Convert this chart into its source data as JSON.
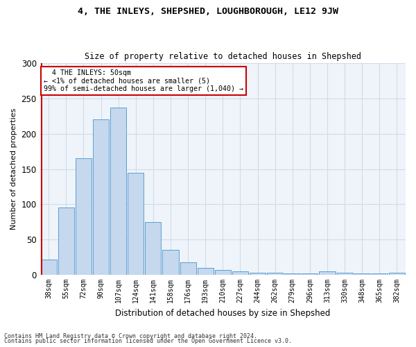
{
  "title": "4, THE INLEYS, SHEPSHED, LOUGHBOROUGH, LE12 9JW",
  "subtitle": "Size of property relative to detached houses in Shepshed",
  "xlabel": "Distribution of detached houses by size in Shepshed",
  "ylabel": "Number of detached properties",
  "bar_color": "#c5d8ed",
  "bar_edge_color": "#5a9fd4",
  "categories": [
    "38sqm",
    "55sqm",
    "72sqm",
    "90sqm",
    "107sqm",
    "124sqm",
    "141sqm",
    "158sqm",
    "176sqm",
    "193sqm",
    "210sqm",
    "227sqm",
    "244sqm",
    "262sqm",
    "279sqm",
    "296sqm",
    "313sqm",
    "330sqm",
    "348sqm",
    "365sqm",
    "382sqm"
  ],
  "bar_heights": [
    22,
    95,
    165,
    220,
    237,
    145,
    75,
    35,
    18,
    10,
    7,
    5,
    3,
    3,
    2,
    2,
    5,
    3,
    2,
    2,
    3
  ],
  "ylim": [
    0,
    300
  ],
  "yticks": [
    0,
    50,
    100,
    150,
    200,
    250,
    300
  ],
  "annotation_text_line1": "4 THE INLEYS: 50sqm",
  "annotation_text_line2": "← <1% of detached houses are smaller (5)",
  "annotation_text_line3": "99% of semi-detached houses are larger (1,040) →",
  "footer_line1": "Contains HM Land Registry data © Crown copyright and database right 2024.",
  "footer_line2": "Contains public sector information licensed under the Open Government Licence v3.0.",
  "grid_color": "#d0dce8",
  "background_color": "#eef4fa",
  "red_line_color": "#cc0000",
  "annotation_box_color": "#cc0000"
}
